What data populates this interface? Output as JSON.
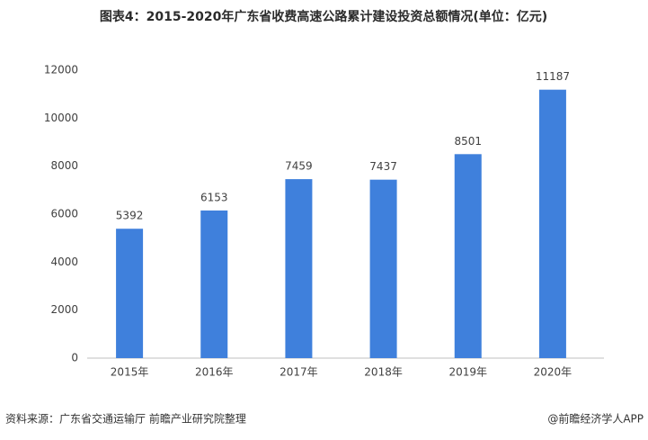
{
  "chart_data": {
    "type": "bar",
    "title": "图表4：2015-2020年广东省收费高速公路累计建设投资总额情况(单位：亿元)",
    "categories": [
      "2015年",
      "2016年",
      "2017年",
      "2018年",
      "2019年",
      "2020年"
    ],
    "values": [
      5392,
      6153,
      7459,
      7437,
      8501,
      11187
    ],
    "color": "#3f80dc",
    "ylim": [
      0,
      12000
    ],
    "yticks": [
      0,
      2000,
      4000,
      6000,
      8000,
      10000,
      12000
    ],
    "grid": false
  },
  "footer": {
    "source": "资料来源：广东省交通运输厅 前瞻产业研究院整理",
    "credit": "@前瞻经济学人APP"
  }
}
